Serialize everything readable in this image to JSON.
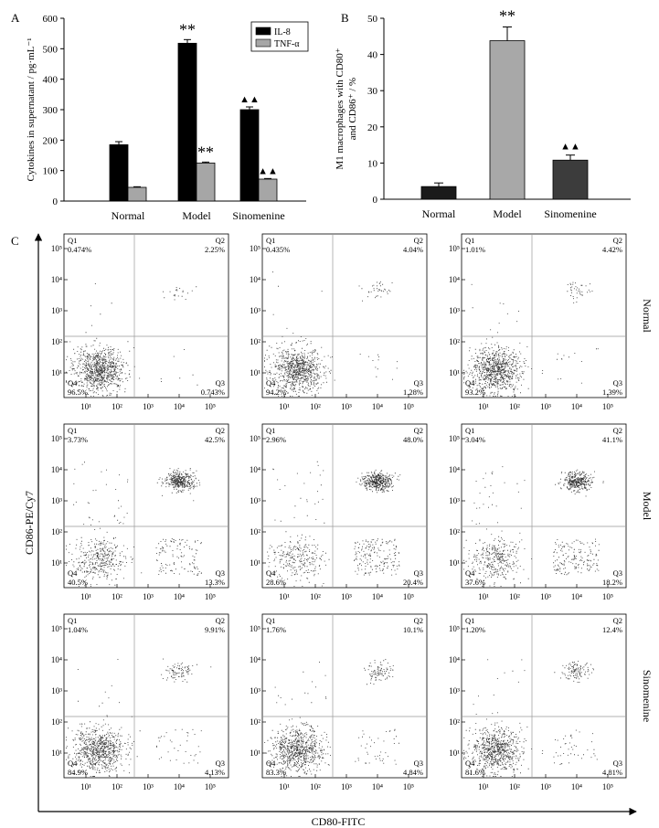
{
  "colors": {
    "il8": "#000000",
    "tnf": "#a6a6a6",
    "pct_normal": "#1a1a1a",
    "pct_model": "#a8a8a8",
    "pct_sino": "#3c3c3c",
    "dot": "#333333",
    "gate": "#999999"
  },
  "chart_data": [
    {
      "panel": "A",
      "type": "bar",
      "ylabel": "Cytokines in supernatant / pg·mL⁻¹",
      "ylim": [
        0,
        600
      ],
      "yticks": [
        0,
        100,
        200,
        300,
        400,
        500,
        600
      ],
      "categories": [
        "Normal",
        "Model",
        "Sinomenine"
      ],
      "series": [
        {
          "name": "IL-8",
          "values": [
            185,
            518,
            300
          ],
          "errors": [
            10,
            12,
            9
          ]
        },
        {
          "name": "TNF-α",
          "values": [
            45,
            125,
            72
          ],
          "errors": [
            2,
            3,
            2
          ]
        }
      ],
      "annotations": [
        {
          "series": 0,
          "index": 1,
          "text": "**"
        },
        {
          "series": 1,
          "index": 1,
          "text": "**"
        },
        {
          "series": 0,
          "index": 2,
          "text": "▲▲"
        },
        {
          "series": 1,
          "index": 2,
          "text": "▲▲"
        }
      ]
    },
    {
      "panel": "B",
      "type": "bar",
      "ylabel_line1": "M1 macrophages with CD80⁺",
      "ylabel_line2": "and CD86⁺ / %",
      "ylim": [
        0,
        50
      ],
      "yticks": [
        0,
        10,
        20,
        30,
        40,
        50
      ],
      "categories": [
        "Normal",
        "Model",
        "Sinomenine"
      ],
      "values": [
        3.5,
        43.8,
        10.8
      ],
      "errors": [
        1.0,
        3.8,
        1.4
      ],
      "annotations": [
        {
          "index": 1,
          "text": "**"
        },
        {
          "index": 2,
          "text": "▲▲"
        }
      ]
    },
    {
      "panel": "C",
      "type": "scatter",
      "xlabel": "CD80-FITC",
      "ylabel": "CD86-PE/Cy7",
      "tick_labels": [
        "10¹",
        "10²",
        "10³",
        "10⁴",
        "10⁵"
      ],
      "row_labels": [
        "Normal",
        "Model",
        "Sinomenine"
      ],
      "quadrant_names": [
        "Q1",
        "Q2",
        "Q3",
        "Q4"
      ],
      "quadrants": [
        [
          [
            "0.474%",
            "2.25%",
            "0.743%",
            "96.5%"
          ],
          [
            "0.435%",
            "4.04%",
            "1.28%",
            "94.2%"
          ],
          [
            "1.01%",
            "4.42%",
            "1.39%",
            "93.2%"
          ]
        ],
        [
          [
            "3.73%",
            "42.5%",
            "13.3%",
            "40.5%"
          ],
          [
            "2.96%",
            "48.0%",
            "20.4%",
            "28.6%"
          ],
          [
            "3.04%",
            "41.1%",
            "18.2%",
            "37.6%"
          ]
        ],
        [
          [
            "1.04%",
            "9.91%",
            "4.13%",
            "84.9%"
          ],
          [
            "1.76%",
            "10.1%",
            "4.84%",
            "83.3%"
          ],
          [
            "1.20%",
            "12.4%",
            "4.81%",
            "81.6%"
          ]
        ]
      ]
    }
  ],
  "labels": {
    "panel_a": "A",
    "panel_b": "B",
    "panel_c": "C"
  }
}
